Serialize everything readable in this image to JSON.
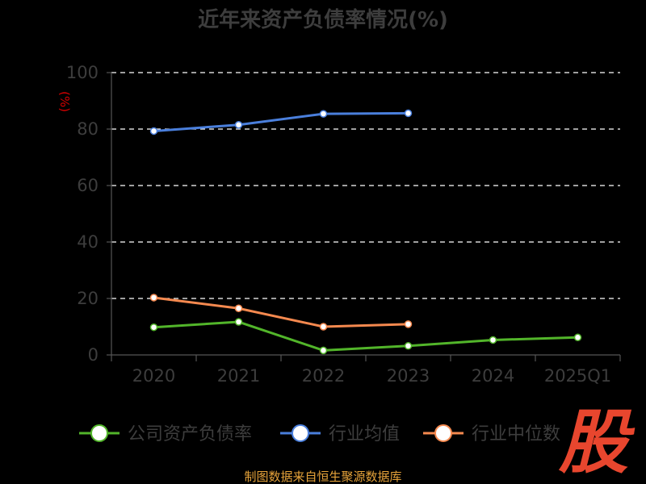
{
  "chart_data": {
    "type": "line",
    "title": "近年来资产负债率情况(%)",
    "ylabel": "(%)",
    "xlabel": "",
    "categories": [
      "2020",
      "2021",
      "2022",
      "2023",
      "2024",
      "2025Q1"
    ],
    "ylim": [
      0,
      100
    ],
    "yticks": [
      0,
      20,
      40,
      60,
      80,
      100
    ],
    "grid": true,
    "legend_position": "bottom",
    "series": [
      {
        "name": "公司资产负债率",
        "color": "#52b52a",
        "values": [
          9.8,
          11.7,
          1.6,
          3.2,
          5.3,
          6.2
        ]
      },
      {
        "name": "行业均值",
        "color": "#4a7fdc",
        "values": [
          79.3,
          81.5,
          85.4,
          85.6,
          null,
          null
        ]
      },
      {
        "name": "行业中位数",
        "color": "#f5894f",
        "values": [
          20.3,
          16.5,
          10.0,
          10.9,
          null,
          null
        ]
      }
    ]
  },
  "footer": {
    "source": "制图数据来自恒生聚源数据库"
  },
  "watermark": {
    "text": "股"
  }
}
